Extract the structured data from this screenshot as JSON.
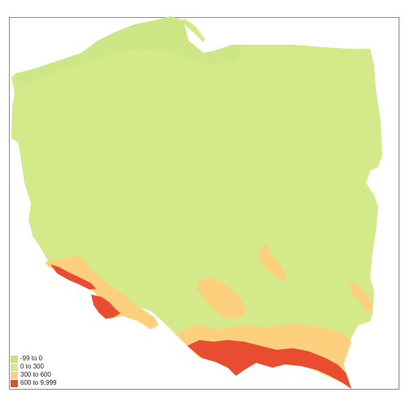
{
  "map": {
    "region": "Poland",
    "legend": {
      "items": [
        {
          "label": "-99 to 0",
          "color": "#c5e57f"
        },
        {
          "label": "0 to 300",
          "color": "#d4ea8a"
        },
        {
          "label": "300 to 600",
          "color": "#fdd07e"
        },
        {
          "label": "600 to 9,999",
          "color": "#e84d31"
        }
      ]
    }
  },
  "colors": {
    "lowland": "#d4ea8a",
    "coastal": "#c9e583",
    "upland": "#fdd07e",
    "mountain": "#e84d31",
    "frame": "#8c8c8c"
  }
}
